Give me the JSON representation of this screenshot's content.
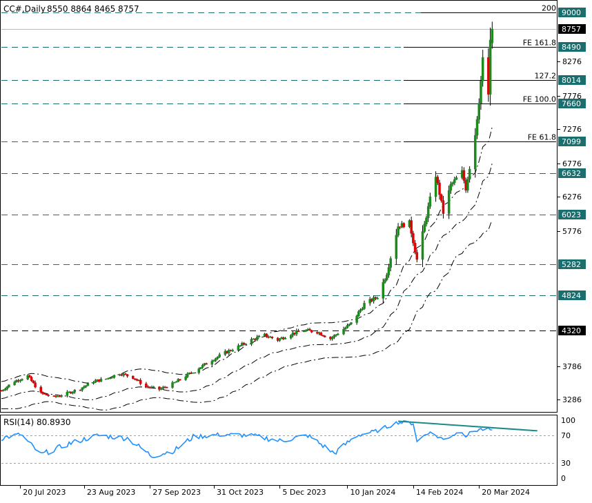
{
  "header": {
    "symbol_label": "CC#,Daily",
    "ohlc": "8550 8864 8465 8757"
  },
  "colors": {
    "bull": "#1a8a1a",
    "bear": "#e00000",
    "level_line": "#1b6e6e",
    "axis_box": "#1b6e6e",
    "price_box": "#000000",
    "rsi_line": "#1e90ff",
    "divergence": "#1b8a8a",
    "band": "#000000"
  },
  "chart_data": [
    {
      "type": "candlestick",
      "title": "CC#,Daily",
      "ohlc_last": {
        "open": 8550,
        "high": 8864,
        "low": 8465,
        "close": 8757
      },
      "ylim": [
        3050,
        9300
      ],
      "y_tick_labels": [
        "8276",
        "7776",
        "7276",
        "6776",
        "6276",
        "5776",
        "3786",
        "3286"
      ],
      "x_tick_labels": [
        "20 Jul 2023",
        "23 Aug 2023",
        "27 Sep 2023",
        "31 Oct 2023",
        "5 Dec 2023",
        "10 Jan 2024",
        "14 Feb 2024",
        "20 Mar 2024"
      ],
      "level_boxes": [
        "9000",
        "8490",
        "8014",
        "7660",
        "7099",
        "6632",
        "6023",
        "5282",
        "4824",
        "4320"
      ],
      "last_price_label": "8757",
      "fib_labels": [
        {
          "text": "200",
          "price": 9000
        },
        {
          "text": "FE 161.8",
          "price": 8490
        },
        {
          "text": "127.2",
          "price": 8014
        },
        {
          "text": "FE 100.0",
          "price": 7660
        },
        {
          "text": "FE 61.8",
          "price": 7099
        }
      ],
      "close_path": [
        [
          "2023-07-10",
          3420
        ],
        [
          "2023-07-17",
          3560
        ],
        [
          "2023-07-24",
          3640
        ],
        [
          "2023-07-31",
          3380
        ],
        [
          "2023-08-07",
          3320
        ],
        [
          "2023-08-14",
          3380
        ],
        [
          "2023-08-21",
          3450
        ],
        [
          "2023-08-28",
          3560
        ],
        [
          "2023-09-04",
          3600
        ],
        [
          "2023-09-11",
          3680
        ],
        [
          "2023-09-18",
          3620
        ],
        [
          "2023-09-25",
          3480
        ],
        [
          "2023-10-02",
          3440
        ],
        [
          "2023-10-09",
          3520
        ],
        [
          "2023-10-16",
          3640
        ],
        [
          "2023-10-23",
          3760
        ],
        [
          "2023-10-30",
          3880
        ],
        [
          "2023-11-06",
          3990
        ],
        [
          "2023-11-13",
          4080
        ],
        [
          "2023-11-20",
          4180
        ],
        [
          "2023-11-27",
          4250
        ],
        [
          "2023-12-04",
          4180
        ],
        [
          "2023-12-11",
          4270
        ],
        [
          "2023-12-18",
          4320
        ],
        [
          "2023-12-25",
          4300
        ],
        [
          "2024-01-01",
          4200
        ],
        [
          "2024-01-05",
          4280
        ],
        [
          "2024-01-12",
          4420
        ],
        [
          "2024-01-19",
          4700
        ],
        [
          "2024-01-26",
          4800
        ],
        [
          "2024-01-31",
          5150
        ],
        [
          "2024-02-06",
          5850
        ],
        [
          "2024-02-12",
          5900
        ],
        [
          "2024-02-16",
          5350
        ],
        [
          "2024-02-21",
          6000
        ],
        [
          "2024-02-26",
          6600
        ],
        [
          "2024-03-01",
          6050
        ],
        [
          "2024-03-05",
          6450
        ],
        [
          "2024-03-11",
          6650
        ],
        [
          "2024-03-13",
          6400
        ],
        [
          "2024-03-18",
          7200
        ],
        [
          "2024-03-20",
          7700
        ],
        [
          "2024-03-22",
          8300
        ],
        [
          "2024-03-25",
          7800
        ],
        [
          "2024-03-26",
          8550
        ],
        [
          "2024-03-27",
          8757
        ]
      ]
    },
    {
      "type": "line",
      "title": "RSI(14) 80.8930",
      "ylim": [
        0,
        100
      ],
      "y_tick_labels": [
        "100",
        "70",
        "30",
        "0"
      ],
      "levels": [
        70,
        30
      ],
      "series_path": [
        [
          "2023-07-10",
          66
        ],
        [
          "2023-07-20",
          72
        ],
        [
          "2023-07-31",
          42
        ],
        [
          "2023-08-15",
          58
        ],
        [
          "2023-08-30",
          70
        ],
        [
          "2023-09-15",
          66
        ],
        [
          "2023-09-28",
          40
        ],
        [
          "2023-10-10",
          48
        ],
        [
          "2023-10-20",
          68
        ],
        [
          "2023-11-05",
          72
        ],
        [
          "2023-11-20",
          70
        ],
        [
          "2023-12-05",
          62
        ],
        [
          "2023-12-20",
          70
        ],
        [
          "2024-01-03",
          44
        ],
        [
          "2024-01-15",
          70
        ],
        [
          "2024-01-25",
          78
        ],
        [
          "2024-02-06",
          96
        ],
        [
          "2024-02-14",
          94
        ],
        [
          "2024-02-16",
          60
        ],
        [
          "2024-02-22",
          76
        ],
        [
          "2024-03-01",
          64
        ],
        [
          "2024-03-11",
          78
        ],
        [
          "2024-03-13",
          70
        ],
        [
          "2024-03-20",
          82
        ],
        [
          "2024-03-27",
          80.89
        ]
      ],
      "divergence_line": [
        [
          "2024-02-06",
          98
        ],
        [
          "2024-04-20",
          79
        ]
      ]
    }
  ]
}
